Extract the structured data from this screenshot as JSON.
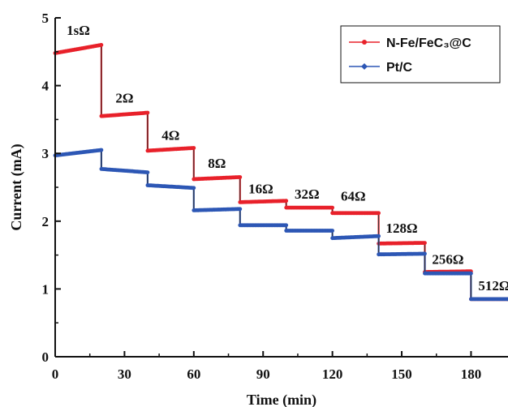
{
  "chart_data": {
    "type": "line",
    "title": "",
    "xlabel": "Time (min)",
    "ylabel": "Current (mA)",
    "xlim": [
      0,
      196
    ],
    "ylim": [
      0,
      5
    ],
    "xticks": [
      "0",
      "30",
      "60",
      "90",
      "120",
      "150",
      "180"
    ],
    "xtick_values": [
      0,
      30,
      60,
      90,
      120,
      150,
      180
    ],
    "yticks": [
      "0",
      "1",
      "2",
      "3",
      "4",
      "5"
    ],
    "ytick_values": [
      0,
      1,
      2,
      3,
      4,
      5
    ],
    "grid": false,
    "legend_position": "top-right",
    "step_labels": [
      {
        "text": "1sΩ",
        "x": 10,
        "y": 4.75
      },
      {
        "text": "2Ω",
        "x": 30,
        "y": 3.75
      },
      {
        "text": "4Ω",
        "x": 50,
        "y": 3.2
      },
      {
        "text": "8Ω",
        "x": 70,
        "y": 2.79
      },
      {
        "text": "16Ω",
        "x": 89,
        "y": 2.41
      },
      {
        "text": "32Ω",
        "x": 109,
        "y": 2.33
      },
      {
        "text": "64Ω",
        "x": 129,
        "y": 2.3
      },
      {
        "text": "128Ω",
        "x": 150,
        "y": 1.83
      },
      {
        "text": "256Ω",
        "x": 170,
        "y": 1.37
      },
      {
        "text": "512Ω",
        "x": 190,
        "y": 0.98
      }
    ],
    "series": [
      {
        "name": "N-Fe/FeC₃@C",
        "color": "#e8212a",
        "segments": [
          {
            "x": [
              0,
              20
            ],
            "y": [
              4.48,
              4.6
            ]
          },
          {
            "x": [
              20,
              40
            ],
            "y": [
              3.55,
              3.6
            ]
          },
          {
            "x": [
              40,
              60
            ],
            "y": [
              3.04,
              3.08
            ]
          },
          {
            "x": [
              60,
              80
            ],
            "y": [
              2.62,
              2.65
            ]
          },
          {
            "x": [
              80,
              100
            ],
            "y": [
              2.28,
              2.3
            ]
          },
          {
            "x": [
              100,
              120
            ],
            "y": [
              2.2,
              2.2
            ]
          },
          {
            "x": [
              120,
              140
            ],
            "y": [
              2.12,
              2.12
            ]
          },
          {
            "x": [
              140,
              160
            ],
            "y": [
              1.67,
              1.68
            ]
          },
          {
            "x": [
              160,
              180
            ],
            "y": [
              1.25,
              1.26
            ]
          },
          {
            "x": [
              180,
              196
            ],
            "y": [
              0.85,
              0.85
            ]
          }
        ]
      },
      {
        "name": "Pt/C",
        "color": "#2d57b5",
        "segments": [
          {
            "x": [
              0,
              20
            ],
            "y": [
              2.97,
              3.05
            ]
          },
          {
            "x": [
              20,
              40
            ],
            "y": [
              2.77,
              2.72
            ]
          },
          {
            "x": [
              40,
              60
            ],
            "y": [
              2.53,
              2.49
            ]
          },
          {
            "x": [
              60,
              80
            ],
            "y": [
              2.16,
              2.18
            ]
          },
          {
            "x": [
              80,
              100
            ],
            "y": [
              1.94,
              1.94
            ]
          },
          {
            "x": [
              100,
              120
            ],
            "y": [
              1.86,
              1.86
            ]
          },
          {
            "x": [
              120,
              140
            ],
            "y": [
              1.75,
              1.78
            ]
          },
          {
            "x": [
              140,
              160
            ],
            "y": [
              1.51,
              1.52
            ]
          },
          {
            "x": [
              160,
              180
            ],
            "y": [
              1.23,
              1.23
            ]
          },
          {
            "x": [
              180,
              196
            ],
            "y": [
              0.85,
              0.85
            ]
          }
        ]
      }
    ]
  }
}
